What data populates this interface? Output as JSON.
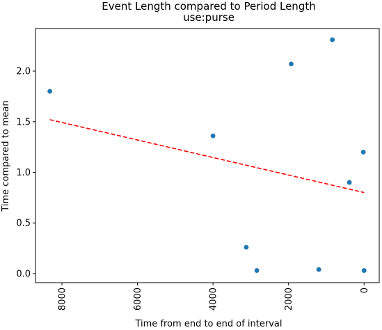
{
  "chart_data": {
    "type": "scatter",
    "title": "Event Length compared to Period Length",
    "subtitle": "use:purse",
    "xlabel": "Time from end to end of interval",
    "ylabel": "Time compared to mean",
    "xlim": [
      8700,
      -400
    ],
    "ylim": [
      -0.09,
      2.42
    ],
    "x_ticks": [
      8000,
      6000,
      4000,
      2000,
      0
    ],
    "y_ticks": [
      0.0,
      0.5,
      1.0,
      1.5,
      2.0
    ],
    "y_tick_labels": [
      "0.0",
      "0.5",
      "1.0",
      "1.5",
      "2.0"
    ],
    "grid": false,
    "series": [
      {
        "type": "scatter",
        "color": "#1f77b4",
        "x": [
          8320,
          4000,
          3120,
          2840,
          1930,
          1200,
          840,
          390,
          20,
          0
        ],
        "y": [
          1.8,
          1.36,
          0.26,
          0.03,
          2.07,
          0.04,
          2.31,
          0.9,
          1.2,
          0.03
        ]
      },
      {
        "type": "line",
        "style": "dashed",
        "color": "#ff0000",
        "x": [
          8320,
          0
        ],
        "y": [
          1.52,
          0.8
        ]
      }
    ]
  }
}
